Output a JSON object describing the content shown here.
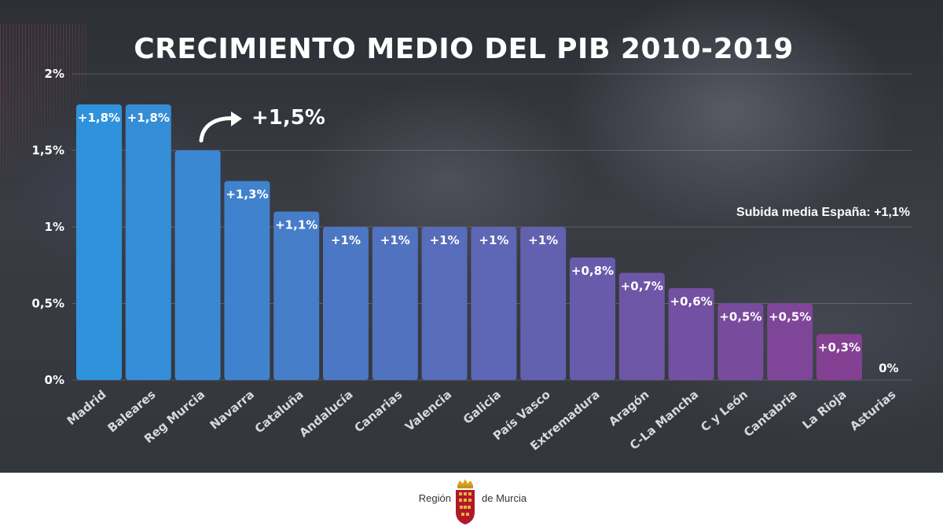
{
  "title": "CRECIMIENTO MEDIO DEL PIB 2010-2019",
  "callout": {
    "text": "+1,5%",
    "target": "Reg Murcia"
  },
  "reference_note": "Subida media España: +1,1%",
  "footer": {
    "logo_text_left": "Región",
    "logo_text_right": "de Murcia",
    "emblem": "crest-icon"
  },
  "colors": {
    "bar_start": "#2f93dc",
    "bar_end": "#8a3a8e",
    "background": "#33353c"
  },
  "chart_data": {
    "type": "bar",
    "title": "CRECIMIENTO MEDIO DEL PIB 2010-2019",
    "xlabel": "",
    "ylabel": "",
    "ylim": [
      0,
      2
    ],
    "yticks": [
      0,
      0.5,
      1,
      1.5,
      2
    ],
    "ytick_labels": [
      "0%",
      "0,5%",
      "1%",
      "1,5%",
      "2%"
    ],
    "grid": true,
    "categories": [
      "Madrid",
      "Baleares",
      "Reg Murcia",
      "Navarra",
      "Cataluña",
      "Andalucía",
      "Canarias",
      "Valencia",
      "Galicia",
      "País Vasco",
      "Extremadura",
      "Aragón",
      "C-La Mancha",
      "C y León",
      "Cantabria",
      "La Rioja",
      "Asturias"
    ],
    "values": [
      1.8,
      1.8,
      1.5,
      1.3,
      1.1,
      1.0,
      1.0,
      1.0,
      1.0,
      1.0,
      0.8,
      0.7,
      0.6,
      0.5,
      0.5,
      0.3,
      0
    ],
    "data_labels": [
      "+1,8%",
      "+1,8%",
      "",
      "+1,3%",
      "+1,1%",
      "+1%",
      "+1%",
      "+1%",
      "+1%",
      "+1%",
      "+0,8%",
      "+0,7%",
      "+0,6%",
      "+0,5%",
      "+0,5%",
      "+0,3%",
      "0%"
    ]
  }
}
